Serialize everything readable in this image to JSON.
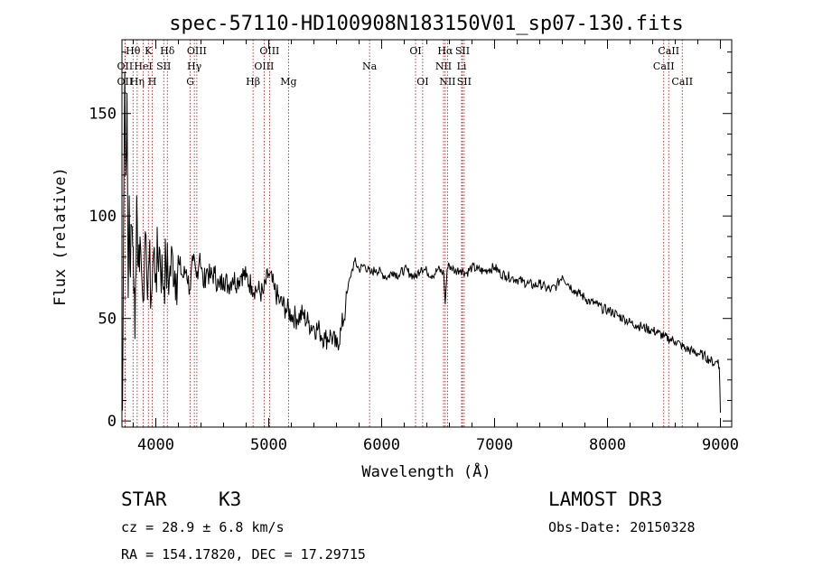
{
  "chart_data": {
    "type": "line",
    "title": "spec-57110-HD100908N183150V01_sp07-130.fits",
    "xlabel": "Wavelength (Å)",
    "ylabel": "Flux (relative)",
    "xlim": [
      3700,
      9100
    ],
    "ylim": [
      -3,
      186
    ],
    "x_ticks": [
      4000,
      5000,
      6000,
      7000,
      8000,
      9000
    ],
    "y_ticks": [
      0,
      50,
      100,
      150
    ],
    "series": [
      {
        "name": "flux",
        "x": [
          3705,
          3715,
          3725,
          3735,
          3745,
          3755,
          3765,
          3775,
          3785,
          3800,
          3815,
          3830,
          3845,
          3860,
          3880,
          3900,
          3920,
          3940,
          3960,
          3980,
          4000,
          4030,
          4060,
          4090,
          4120,
          4150,
          4180,
          4210,
          4240,
          4270,
          4300,
          4330,
          4360,
          4390,
          4420,
          4450,
          4480,
          4520,
          4560,
          4600,
          4640,
          4680,
          4720,
          4760,
          4800,
          4850,
          4900,
          4950,
          5000,
          5050,
          5100,
          5150,
          5200,
          5250,
          5300,
          5350,
          5400,
          5450,
          5500,
          5550,
          5600,
          5640,
          5680,
          5700,
          5720,
          5740,
          5760,
          5800,
          5850,
          5900,
          5950,
          6000,
          6050,
          6100,
          6150,
          6200,
          6250,
          6300,
          6350,
          6400,
          6450,
          6500,
          6550,
          6563,
          6580,
          6600,
          6650,
          6700,
          6750,
          6800,
          6850,
          6900,
          6950,
          7000,
          7050,
          7100,
          7150,
          7200,
          7250,
          7300,
          7350,
          7400,
          7450,
          7500,
          7550,
          7600,
          7650,
          7700,
          7750,
          7800,
          7850,
          7900,
          7950,
          8000,
          8050,
          8100,
          8150,
          8200,
          8250,
          8300,
          8350,
          8400,
          8450,
          8500,
          8550,
          8600,
          8650,
          8700,
          8750,
          8800,
          8850,
          8900,
          8950,
          8980,
          8990,
          9000
        ],
        "y": [
          5,
          100,
          170,
          120,
          160,
          60,
          110,
          70,
          95,
          85,
          40,
          110,
          75,
          90,
          65,
          80,
          70,
          78,
          60,
          82,
          72,
          85,
          68,
          75,
          70,
          80,
          72,
          76,
          70,
          74,
          64,
          78,
          70,
          82,
          66,
          74,
          70,
          72,
          65,
          70,
          66,
          70,
          68,
          72,
          70,
          66,
          64,
          62,
          72,
          64,
          58,
          55,
          52,
          50,
          52,
          48,
          46,
          44,
          40,
          42,
          36,
          44,
          55,
          64,
          70,
          74,
          78,
          74,
          76,
          72,
          74,
          72,
          70,
          73,
          71,
          74,
          72,
          70,
          75,
          73,
          71,
          74,
          72,
          57,
          74,
          76,
          73,
          74,
          72,
          75,
          74,
          73,
          74,
          75,
          72,
          71,
          70,
          69,
          68,
          67,
          66,
          67,
          65,
          64,
          66,
          71,
          67,
          64,
          62,
          60,
          58,
          57,
          55,
          54,
          53,
          51,
          50,
          48,
          47,
          46,
          45,
          44,
          43,
          41,
          40,
          39,
          37,
          35,
          34,
          33,
          32,
          30,
          28,
          30,
          26,
          4
        ]
      }
    ],
    "lines_top": [
      {
        "label": "Hθ",
        "x": 3798
      },
      {
        "label": "K",
        "x": 3934
      },
      {
        "label": "Hδ",
        "x": 4102
      },
      {
        "label": "OIII",
        "x": 4363
      },
      {
        "label": "OIII",
        "x": 5007
      },
      {
        "label": "OI",
        "x": 6300
      },
      {
        "label": "Hα",
        "x": 6563
      },
      {
        "label": "SII",
        "x": 6716
      },
      {
        "label": "CaII",
        "x": 8542
      }
    ],
    "lines_middle": [
      {
        "label": "OII",
        "x": 3727
      },
      {
        "label": "HeI",
        "x": 3889
      },
      {
        "label": "SII",
        "x": 4070
      },
      {
        "label": "Hγ",
        "x": 4341
      },
      {
        "label": "OIII",
        "x": 4959
      },
      {
        "label": "Na",
        "x": 5893
      },
      {
        "label": "NII",
        "x": 6548
      },
      {
        "label": "Li",
        "x": 6708
      },
      {
        "label": "CaII",
        "x": 8498
      }
    ],
    "lines_bottom": [
      {
        "label": "OII",
        "x": 3727
      },
      {
        "label": "Hη",
        "x": 3835
      },
      {
        "label": "H",
        "x": 3968
      },
      {
        "label": "G",
        "x": 4305
      },
      {
        "label": "Hβ",
        "x": 4861
      },
      {
        "label": "Mg",
        "x": 5175
      },
      {
        "label": "OI",
        "x": 6363
      },
      {
        "label": "NII",
        "x": 6583
      },
      {
        "label": "SII",
        "x": 6731
      },
      {
        "label": "CaII",
        "x": 8662
      }
    ],
    "line_color": "#000000",
    "marker_color": "#c00000"
  },
  "info": {
    "object_class": "STAR",
    "subclass": "K3",
    "survey": "LAMOST DR3",
    "cz": "cz = 28.9 ± 6.8 km/s",
    "obs_date": "Obs-Date: 20150328",
    "coords": "RA = 154.17820, DEC =  17.29715"
  }
}
